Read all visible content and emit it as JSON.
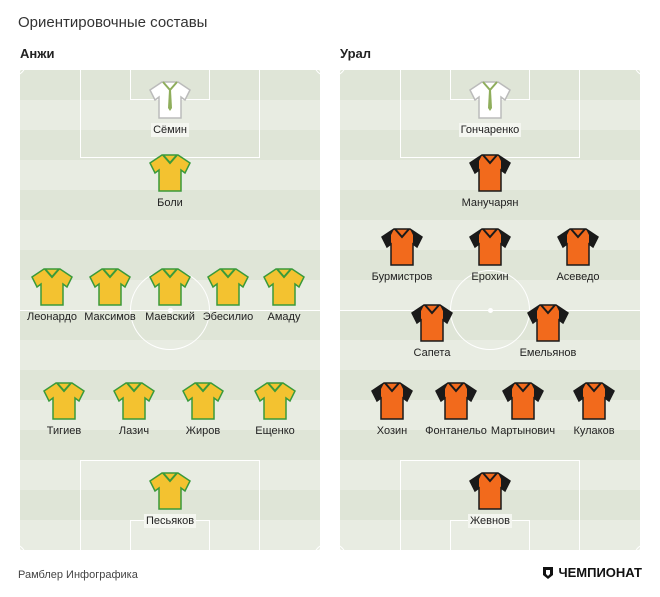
{
  "title": "Ориентировочные составы",
  "footer": "Рамблер Инфографика",
  "brand": "ЧЕМПИОНАТ",
  "colors": {
    "pitch_dark": "#dfe5d7",
    "pitch_light": "#e8ece2",
    "anji_shirt": "#f3c230",
    "anji_trim": "#3a9a3a",
    "ural_shirt": "#f26a1c",
    "ural_trim": "#1a1a1a",
    "gk_shirt": "#ffffff"
  },
  "teams": [
    {
      "name": "Анжи",
      "players": [
        {
          "name": "Сёмин",
          "kit": "gk"
        },
        {
          "name": "Боли",
          "kit": "field"
        },
        {
          "name": "Леонардо",
          "kit": "field"
        },
        {
          "name": "Максимов",
          "kit": "field"
        },
        {
          "name": "Маевский",
          "kit": "field"
        },
        {
          "name": "Эбесилио",
          "kit": "field"
        },
        {
          "name": "Амаду",
          "kit": "field"
        },
        {
          "name": "Тигиев",
          "kit": "field"
        },
        {
          "name": "Лазич",
          "kit": "field"
        },
        {
          "name": "Жиров",
          "kit": "field"
        },
        {
          "name": "Ещенко",
          "kit": "field"
        },
        {
          "name": "Песьяков",
          "kit": "field"
        }
      ]
    },
    {
      "name": "Урал",
      "players": [
        {
          "name": "Гончаренко",
          "kit": "gk"
        },
        {
          "name": "Манучарян",
          "kit": "field"
        },
        {
          "name": "Бурмистров",
          "kit": "field"
        },
        {
          "name": "Ерохин",
          "kit": "field"
        },
        {
          "name": "Асеведо",
          "kit": "field"
        },
        {
          "name": "Сапета",
          "kit": "field"
        },
        {
          "name": "Емельянов",
          "kit": "field"
        },
        {
          "name": "Хозин",
          "kit": "field"
        },
        {
          "name": "Фонтанельо",
          "kit": "field"
        },
        {
          "name": "Мартынович",
          "kit": "field"
        },
        {
          "name": "Кулаков",
          "kit": "field"
        },
        {
          "name": "Жевнов",
          "kit": "field"
        }
      ]
    }
  ]
}
